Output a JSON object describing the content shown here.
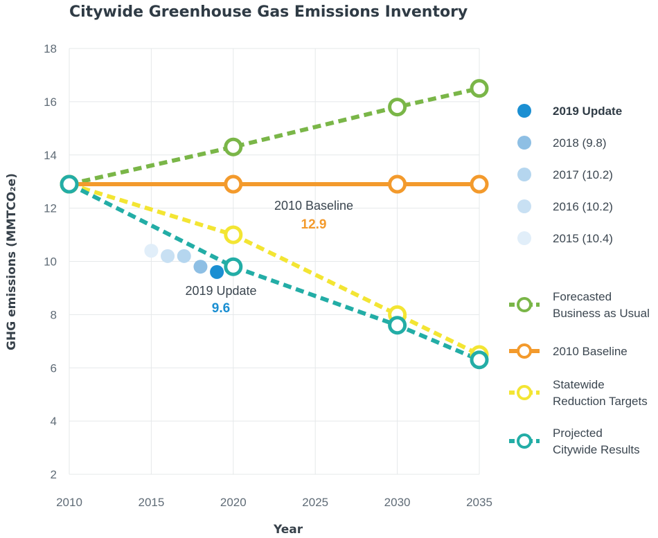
{
  "chart_data": {
    "type": "line",
    "title": "Citywide Greenhouse Gas Emissions Inventory",
    "xlabel": "Year",
    "ylabel": "GHG emissions (MMTCO₂e)",
    "xlim": [
      2010,
      2035
    ],
    "ylim": [
      2,
      18
    ],
    "x_ticks": [
      "2010",
      "2015",
      "2020",
      "2025",
      "2030",
      "2035"
    ],
    "y_ticks": [
      "2",
      "4",
      "6",
      "8",
      "10",
      "12",
      "14",
      "16",
      "18"
    ],
    "grid": true,
    "legend_position": "right",
    "series": [
      {
        "name": "Forecasted Business as Usual",
        "color": "#7ab648",
        "style": "dashed",
        "x": [
          2010,
          2020,
          2030,
          2035
        ],
        "y": [
          12.9,
          14.3,
          15.8,
          16.5
        ]
      },
      {
        "name": "2010 Baseline",
        "color": "#f39a2c",
        "style": "solid",
        "x": [
          2010,
          2020,
          2030,
          2035
        ],
        "y": [
          12.9,
          12.9,
          12.9,
          12.9
        ]
      },
      {
        "name": "Statewide Reduction Targets",
        "color": "#f3e533",
        "style": "dashed",
        "x": [
          2010,
          2020,
          2030,
          2035
        ],
        "y": [
          12.9,
          11.0,
          8.0,
          6.5
        ]
      },
      {
        "name": "Projected Citywide Results",
        "color": "#23ada6",
        "style": "dashed",
        "x": [
          2010,
          2020,
          2030,
          2035
        ],
        "y": [
          12.9,
          9.8,
          7.6,
          6.3
        ]
      }
    ],
    "inventory_points": [
      {
        "name": "2019 Update",
        "x": 2019,
        "y": 9.6,
        "color": "#1b8fd2"
      },
      {
        "name": "2018 (9.8)",
        "x": 2018,
        "y": 9.8,
        "color": "#8ebfe4"
      },
      {
        "name": "2017 (10.2)",
        "x": 2017,
        "y": 10.2,
        "color": "#b5d6ef"
      },
      {
        "name": "2016 (10.2)",
        "x": 2016,
        "y": 10.2,
        "color": "#c8e0f3"
      },
      {
        "name": "2015 (10.4)",
        "x": 2015,
        "y": 10.4,
        "color": "#e1eef9"
      }
    ],
    "annotations": [
      {
        "label": "2010 Baseline",
        "value": "12.9",
        "value_color": "#f39a2c"
      },
      {
        "label": "2019 Update",
        "value": "9.6",
        "value_color": "#1b8fd2"
      }
    ]
  }
}
